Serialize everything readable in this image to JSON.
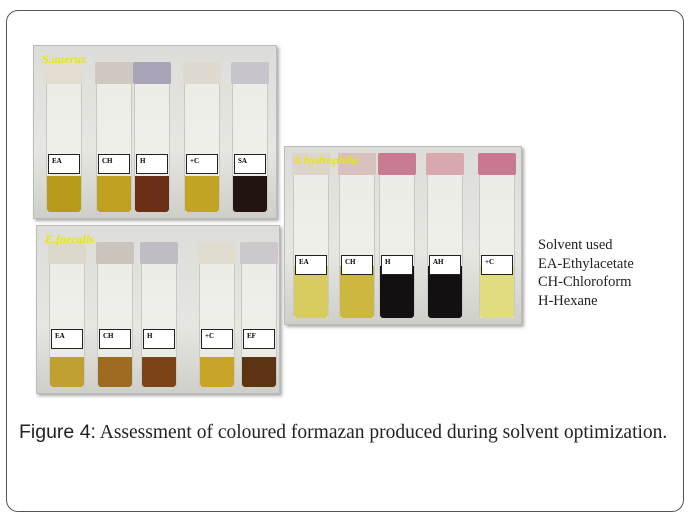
{
  "panels": [
    {
      "id": "s-aureus",
      "title": "S.auerus",
      "vials": [
        {
          "label": "EA",
          "cap": "#e2ddd0",
          "liquid": "#b89a1a"
        },
        {
          "label": "CH",
          "cap": "#cfc8c0",
          "liquid": "#c0a020"
        },
        {
          "label": "H",
          "cap": "#a9a4b8",
          "liquid": "#6b2e16"
        },
        {
          "label": "+C",
          "cap": "#dedad0",
          "liquid": "#c2a424"
        },
        {
          "label": "SA",
          "cap": "#c8c4cc",
          "liquid": "#221410"
        }
      ]
    },
    {
      "id": "e-faecalis",
      "title": "E.faecalis",
      "vials": [
        {
          "label": "EA",
          "cap": "#ddd8cc",
          "liquid": "#c0a030"
        },
        {
          "label": "CH",
          "cap": "#cac4bc",
          "liquid": "#9e6c20"
        },
        {
          "label": "H",
          "cap": "#c0bcc4",
          "liquid": "#7a4418"
        },
        {
          "label": "+C",
          "cap": "#e0dccf",
          "liquid": "#c8a428"
        },
        {
          "label": "EF",
          "cap": "#ccc8cc",
          "liquid": "#5c3414"
        }
      ]
    },
    {
      "id": "a-hydrophila",
      "title": "A.hydrophila",
      "vials": [
        {
          "label": "EA",
          "cap": "#dcd6c8",
          "liquid": "#d8cc60"
        },
        {
          "label": "CH",
          "cap": "#d8c0bc",
          "liquid": "#ccb840"
        },
        {
          "label": "H",
          "cap": "#c87a90",
          "liquid": "#141012"
        },
        {
          "label": "AH",
          "cap": "#d8a8ac",
          "liquid": "#141012"
        },
        {
          "label": "+C",
          "cap": "#c87890",
          "liquid": "#e0dc80"
        }
      ]
    }
  ],
  "legend": [
    "Solvent used",
    "EA-Ethylacetate",
    "CH-Chloroform",
    "H-Hexane"
  ],
  "caption": {
    "label": "Figure 4:",
    "text": " Assessment of coloured formazan produced during solvent optimization."
  }
}
